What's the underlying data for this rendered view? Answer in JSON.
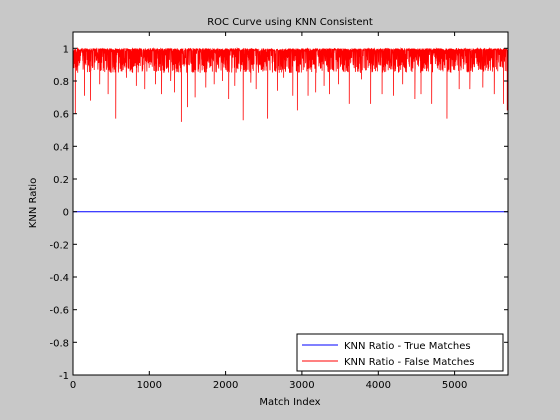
{
  "chart_data": {
    "type": "line",
    "title": "ROC Curve using KNN Consistent",
    "xlabel": "Match Index",
    "ylabel": "KNN Ratio",
    "xlim": [
      0,
      5700
    ],
    "ylim": [
      -1,
      1.1
    ],
    "xticks": [
      0,
      1000,
      2000,
      3000,
      4000,
      5000
    ],
    "yticks": [
      -1,
      -0.8,
      -0.6,
      -0.4,
      -0.2,
      0,
      0.2,
      0.4,
      0.6,
      0.8,
      1
    ],
    "grid": false,
    "legend_position": "bottom-right",
    "series": [
      {
        "name": "KNN Ratio - True Matches",
        "color": "#0000ff",
        "x": [
          0,
          5700
        ],
        "y": [
          0,
          0
        ]
      },
      {
        "name": "KNN Ratio - False Matches",
        "color": "#ff0000",
        "x_range": [
          0,
          5700
        ],
        "y_range": [
          0.55,
          1.0
        ],
        "typical_y_range": [
          0.85,
          1.0
        ],
        "dips": [
          [
            30,
            0.6
          ],
          [
            150,
            0.71
          ],
          [
            230,
            0.68
          ],
          [
            350,
            0.78
          ],
          [
            460,
            0.72
          ],
          [
            560,
            0.57
          ],
          [
            700,
            0.82
          ],
          [
            830,
            0.77
          ],
          [
            940,
            0.75
          ],
          [
            1080,
            0.78
          ],
          [
            1160,
            0.72
          ],
          [
            1280,
            0.8
          ],
          [
            1330,
            0.73
          ],
          [
            1420,
            0.55
          ],
          [
            1500,
            0.64
          ],
          [
            1600,
            0.7
          ],
          [
            1740,
            0.76
          ],
          [
            1850,
            0.78
          ],
          [
            1960,
            0.8
          ],
          [
            2040,
            0.69
          ],
          [
            2120,
            0.77
          ],
          [
            2230,
            0.56
          ],
          [
            2330,
            0.79
          ],
          [
            2400,
            0.75
          ],
          [
            2550,
            0.57
          ],
          [
            2680,
            0.74
          ],
          [
            2760,
            0.82
          ],
          [
            2880,
            0.71
          ],
          [
            2940,
            0.62
          ],
          [
            3080,
            0.71
          ],
          [
            3180,
            0.73
          ],
          [
            3290,
            0.77
          ],
          [
            3360,
            0.72
          ],
          [
            3480,
            0.78
          ],
          [
            3620,
            0.66
          ],
          [
            3780,
            0.81
          ],
          [
            3900,
            0.66
          ],
          [
            4050,
            0.72
          ],
          [
            4200,
            0.71
          ],
          [
            4320,
            0.78
          ],
          [
            4480,
            0.69
          ],
          [
            4560,
            0.72
          ],
          [
            4700,
            0.66
          ],
          [
            4900,
            0.57
          ],
          [
            5060,
            0.75
          ],
          [
            5200,
            0.75
          ],
          [
            5370,
            0.76
          ],
          [
            5520,
            0.72
          ],
          [
            5640,
            0.66
          ],
          [
            5690,
            0.62
          ]
        ]
      }
    ]
  }
}
